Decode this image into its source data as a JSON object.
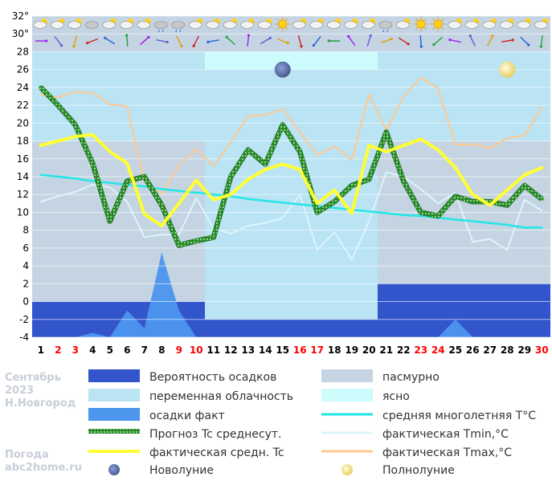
{
  "chart_data": {
    "type": "line",
    "x": [
      1,
      2,
      3,
      4,
      5,
      6,
      7,
      8,
      9,
      10,
      11,
      12,
      13,
      14,
      15,
      16,
      17,
      18,
      19,
      20,
      21,
      22,
      23,
      24,
      25,
      26,
      27,
      28,
      29,
      30
    ],
    "x_label_colors": [
      "#000000",
      "#ff0000",
      "#ff0000",
      "#000000",
      "#000000",
      "#000000",
      "#000000",
      "#000000",
      "#ff0000",
      "#ff0000",
      "#000000",
      "#000000",
      "#000000",
      "#000000",
      "#000000",
      "#ff0000",
      "#ff0000",
      "#000000",
      "#000000",
      "#000000",
      "#000000",
      "#000000",
      "#ff0000",
      "#ff0000",
      "#000000",
      "#000000",
      "#000000",
      "#000000",
      "#000000",
      "#ff0000"
    ],
    "ylim": [
      -4,
      32
    ],
    "yticks": [
      "-4",
      "-2",
      "0",
      "2",
      "4",
      "6",
      "8",
      "10",
      "12",
      "14",
      "16",
      "18",
      "20",
      "22",
      "24",
      "26",
      "28",
      "30°",
      "32°"
    ],
    "ytick_values": [
      -4,
      -2,
      0,
      2,
      4,
      6,
      8,
      10,
      12,
      14,
      16,
      18,
      20,
      22,
      24,
      26,
      28,
      30,
      32
    ],
    "cloud_bands": [
      {
        "from": 0.5,
        "to": 10.5,
        "type": "partly_cloudy",
        "top": 28,
        "bottom": 18
      },
      {
        "from": 10.5,
        "to": 20.5,
        "type": "clear",
        "top": 28,
        "bottom": 26
      },
      {
        "from": 10.5,
        "to": 20.5,
        "type": "partly_cloudy",
        "top": 26,
        "bottom": -2
      },
      {
        "from": 20.5,
        "to": 30.5,
        "type": "partly_cloudy",
        "top": 28,
        "bottom": 18
      }
    ],
    "precip_probability_bands": [
      {
        "from": 0.5,
        "to": 10.5,
        "level": 0
      },
      {
        "from": 10.5,
        "to": 20.5,
        "level": -2
      },
      {
        "from": 20.5,
        "to": 30.5,
        "level": 2
      }
    ],
    "precip_actual": [
      -4,
      -4,
      -4,
      -3.5,
      -4,
      -1,
      -3,
      5.5,
      -1,
      -4,
      -4,
      -4,
      -4,
      -4,
      -4,
      -4,
      -4,
      -4,
      -4,
      -4,
      -4,
      -4,
      -4,
      -4,
      -2,
      -4,
      -4,
      -4,
      -4,
      -4
    ],
    "series": [
      {
        "name": "Прогноз Tc среднесут.",
        "key": "forecast",
        "values": [
          24.0,
          22.0,
          19.8,
          15.5,
          9.0,
          13.5,
          14.0,
          10.8,
          6.3,
          6.8,
          7.2,
          14.0,
          17.0,
          15.4,
          19.8,
          16.8,
          10.0,
          11.2,
          13.0,
          13.7,
          19.0,
          13.5,
          10.0,
          9.6,
          11.8,
          11.2,
          11.2,
          10.8,
          13.0,
          11.5
        ]
      },
      {
        "name": "фактическая средн. Tc",
        "key": "actual_mean",
        "values": [
          17.5,
          18.0,
          18.5,
          18.7,
          16.8,
          15.5,
          9.8,
          8.5,
          11.0,
          13.6,
          11.4,
          12.0,
          13.7,
          14.8,
          15.4,
          14.8,
          11.0,
          12.5,
          9.9,
          17.5,
          16.8,
          17.5,
          18.2,
          17.0,
          15.0,
          12.0,
          10.8,
          12.5,
          14.2,
          15.0
        ]
      },
      {
        "name": "средняя многолетняя T°C",
        "key": "climate",
        "values": [
          14.2,
          14.0,
          13.8,
          13.5,
          13.3,
          13.1,
          12.9,
          12.6,
          12.4,
          12.2,
          12.0,
          11.8,
          11.5,
          11.3,
          11.1,
          10.9,
          10.7,
          10.5,
          10.3,
          10.1,
          9.9,
          9.7,
          9.6,
          9.4,
          9.2,
          9.0,
          8.8,
          8.6,
          8.3,
          8.3
        ]
      },
      {
        "name": "фактическая Tmin,°C",
        "key": "tmin",
        "values": [
          11.2,
          11.8,
          12.3,
          13.1,
          12.8,
          11.2,
          7.2,
          7.5,
          7.5,
          11.6,
          8.2,
          7.6,
          8.5,
          8.8,
          9.4,
          12.0,
          5.8,
          7.8,
          4.7,
          9.0,
          14.5,
          14.0,
          12.6,
          11.0,
          12.2,
          6.7,
          7.0,
          5.8,
          11.4,
          10.2
        ]
      },
      {
        "name": "фактическая Tmax,°C",
        "key": "tmax",
        "values": [
          23.2,
          22.9,
          23.5,
          23.4,
          22.1,
          21.9,
          13.5,
          12.1,
          15.3,
          17.1,
          15.2,
          17.9,
          20.8,
          20.9,
          21.6,
          19.0,
          16.4,
          17.4,
          15.9,
          23.2,
          19.2,
          23.0,
          25.1,
          23.9,
          17.6,
          17.6,
          17.2,
          18.3,
          18.6,
          21.8
        ]
      }
    ],
    "moons": [
      {
        "x": 15,
        "y": 26,
        "phase": "new"
      },
      {
        "x": 28,
        "y": 26,
        "phase": "full"
      }
    ]
  },
  "colors": {
    "precip_prob": "#3355cc",
    "precip_fact": "#4c96ee",
    "partly_cloudy": "#bae3f4",
    "overcast": "#c4d4e2",
    "clear": "#ccfcfc",
    "forecast": "#2a8a2a",
    "actual_mean": "#ffff33",
    "climate": "#22e6e6",
    "tmin": "#ddf4fb",
    "tmax": "#ffc890",
    "grid": "#ffffff"
  },
  "weather_icons": [
    "partly-cloudy",
    "partly-cloudy",
    "partly-cloudy",
    "cloudy",
    "partly-cloudy",
    "partly-cloudy",
    "partly-cloudy",
    "rain-cloud",
    "rain-cloud",
    "partly-cloudy",
    "partly-cloudy",
    "partly-cloudy",
    "partly-cloudy",
    "partly-cloudy",
    "sun",
    "partly-cloudy",
    "partly-cloudy",
    "partly-cloudy",
    "partly-cloudy",
    "partly-cloudy",
    "rain-cloud",
    "partly-cloudy",
    "sun",
    "sun",
    "partly-cloudy",
    "partly-cloudy",
    "partly-cloudy",
    "partly-cloudy",
    "partly-cloudy",
    "partly-cloudy"
  ],
  "watermark": {
    "line1": "Сентябрь",
    "line2": "2023",
    "line3": "Н.Новгород",
    "line4": "Погода",
    "line5": "abc2home.ru"
  },
  "legend": {
    "precip_prob": "Вероятность осадков",
    "overcast": "пасмурно",
    "partly_cloudy": "переменная облачность",
    "clear": "ясно",
    "precip_fact": "осадки факт",
    "climate": "средняя многолетняя T°C",
    "forecast": "Прогноз Tc среднесут.",
    "tmin": "фактическая Tmin,°C",
    "actual_mean": "фактическая средн. Tc",
    "tmax": "фактическая Tmax,°C",
    "new_moon": "Новолуние",
    "full_moon": "Полнолуние"
  }
}
